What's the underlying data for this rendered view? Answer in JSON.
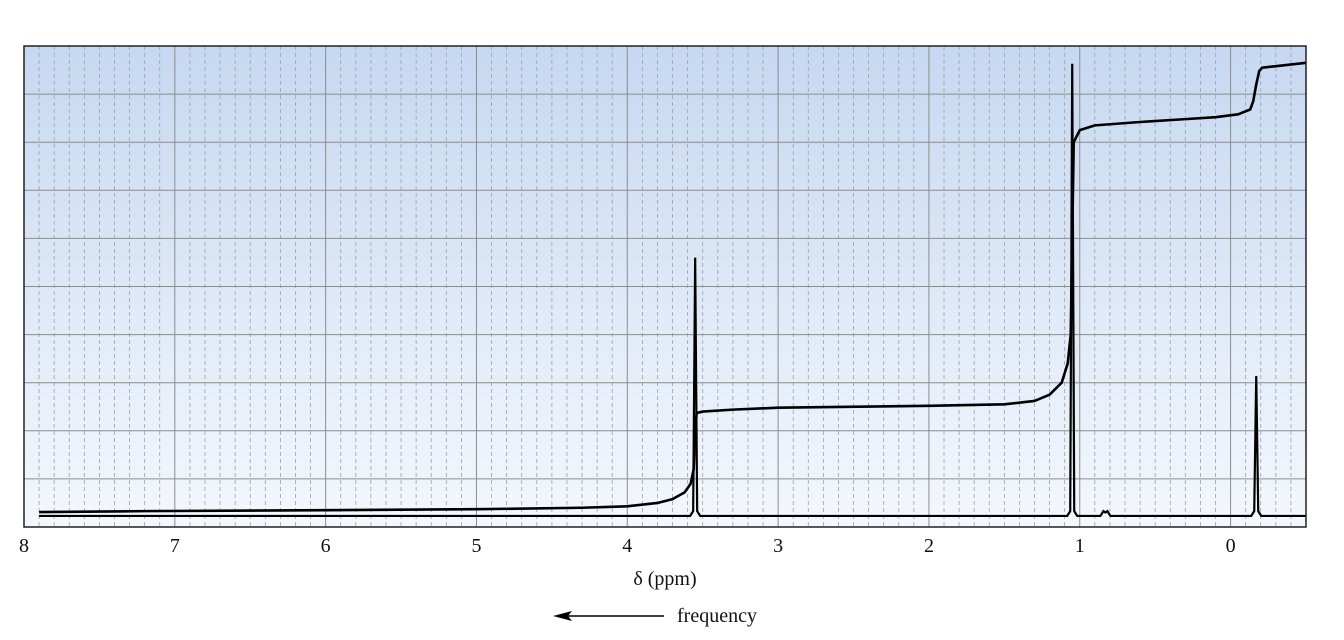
{
  "chart_data": {
    "type": "line",
    "title": "",
    "xlabel": "δ (ppm)",
    "ylabel": "",
    "xlim": [
      8,
      -0.5
    ],
    "x_reversed": true,
    "ylim": [
      0,
      1
    ],
    "grid": true,
    "x_ticks": [
      "8",
      "7",
      "6",
      "5",
      "4",
      "3",
      "2",
      "1",
      "0"
    ],
    "x_tick_values": [
      8,
      7,
      6,
      5,
      4,
      3,
      2,
      1,
      0
    ],
    "annotation": "frequency",
    "annotation_arrow": "left",
    "colors": {
      "background_top": "#c6d8f1",
      "background_bottom": "#f4f8fd",
      "line": "#000000",
      "grid_major": "#8c8c8c",
      "grid_minor": "#a0a0a0"
    },
    "series": [
      {
        "kind": "spectrum",
        "baseline": 0.023,
        "peaks": [
          {
            "ppm": 3.55,
            "height": 0.56
          },
          {
            "ppm": 1.05,
            "height": 0.963
          },
          {
            "ppm": 0.83,
            "height": 0.03
          },
          {
            "ppm": -0.17,
            "height": 0.314
          }
        ]
      },
      {
        "kind": "integral",
        "x": [
          7.9,
          7.2,
          6,
          5,
          4.3,
          4.0,
          3.8,
          3.7,
          3.62,
          3.58,
          3.56,
          3.55,
          3.54,
          3.5,
          3.3,
          3,
          2,
          1.5,
          1.3,
          1.2,
          1.12,
          1.08,
          1.06,
          1.05,
          1.04,
          1.0,
          0.9,
          0.6,
          0.3,
          0.1,
          -0.05,
          -0.13,
          -0.15,
          -0.17,
          -0.19,
          -0.21,
          -0.3,
          -0.5
        ],
        "y": [
          0.031,
          0.033,
          0.035,
          0.037,
          0.04,
          0.043,
          0.05,
          0.058,
          0.072,
          0.09,
          0.12,
          0.2,
          0.237,
          0.24,
          0.244,
          0.248,
          0.252,
          0.255,
          0.262,
          0.275,
          0.3,
          0.34,
          0.4,
          0.6,
          0.8,
          0.825,
          0.835,
          0.842,
          0.848,
          0.852,
          0.858,
          0.868,
          0.885,
          0.92,
          0.948,
          0.955,
          0.958,
          0.965
        ]
      }
    ]
  }
}
